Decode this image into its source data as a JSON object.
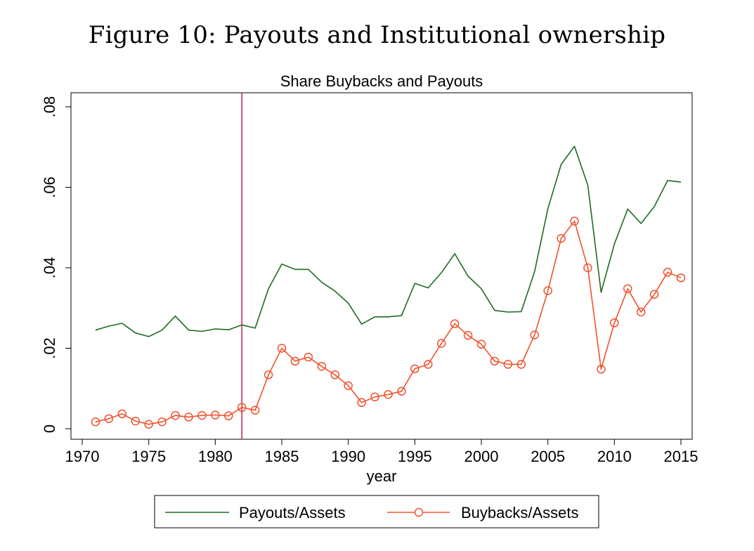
{
  "page": {
    "figure_caption": "Figure 10: Payouts and Institutional ownership"
  },
  "chart_data": {
    "type": "line",
    "title": "Share Buybacks and Payouts",
    "xlabel": "year",
    "ylabel": "",
    "xlim": [
      1970,
      2015
    ],
    "ylim": [
      0,
      0.08
    ],
    "x_ticks": [
      1970,
      1975,
      1980,
      1985,
      1990,
      1995,
      2000,
      2005,
      2010,
      2015
    ],
    "x_tick_labels": [
      "1970",
      "1975",
      "1980",
      "1985",
      "1990",
      "1995",
      "2000",
      "2005",
      "2010",
      "2015"
    ],
    "y_ticks": [
      0,
      0.02,
      0.04,
      0.06,
      0.08
    ],
    "y_tick_labels": [
      "0",
      ".02",
      ".04",
      ".06",
      ".08"
    ],
    "grid": false,
    "legend_position": "bottom",
    "reference_line": {
      "x": 1982,
      "color": "#c0264a"
    },
    "x": [
      1971,
      1972,
      1973,
      1974,
      1975,
      1976,
      1977,
      1978,
      1979,
      1980,
      1981,
      1982,
      1983,
      1984,
      1985,
      1986,
      1987,
      1988,
      1989,
      1990,
      1991,
      1992,
      1993,
      1994,
      1995,
      1996,
      1997,
      1998,
      1999,
      2000,
      2001,
      2002,
      2003,
      2004,
      2005,
      2006,
      2007,
      2008,
      2009,
      2010,
      2011,
      2012,
      2013,
      2014,
      2015
    ],
    "series": [
      {
        "name": "Payouts/Assets",
        "color": "#1e6b22",
        "marker": "none",
        "values": [
          0.0245,
          0.0255,
          0.0262,
          0.0238,
          0.0229,
          0.0245,
          0.028,
          0.0245,
          0.0242,
          0.0248,
          0.0246,
          0.0258,
          0.025,
          0.0348,
          0.0409,
          0.0396,
          0.0396,
          0.0364,
          0.0342,
          0.0312,
          0.026,
          0.0278,
          0.0278,
          0.0281,
          0.0361,
          0.035,
          0.0388,
          0.0435,
          0.0379,
          0.0348,
          0.0294,
          0.029,
          0.0291,
          0.039,
          0.0547,
          0.0657,
          0.0702,
          0.0605,
          0.0339,
          0.0459,
          0.0546,
          0.051,
          0.0552,
          0.0617,
          0.0613
        ]
      },
      {
        "name": "Buybacks/Assets",
        "color": "#f0522e",
        "marker": "hollow-circle",
        "values": [
          0.0017,
          0.0025,
          0.0037,
          0.0019,
          0.0011,
          0.0017,
          0.0033,
          0.0029,
          0.0033,
          0.0034,
          0.0032,
          0.0053,
          0.0046,
          0.0134,
          0.02,
          0.0168,
          0.0178,
          0.0155,
          0.0134,
          0.0107,
          0.0065,
          0.0079,
          0.0085,
          0.0093,
          0.0149,
          0.016,
          0.0212,
          0.0261,
          0.0232,
          0.021,
          0.0168,
          0.016,
          0.016,
          0.0233,
          0.0343,
          0.0473,
          0.0516,
          0.04,
          0.0148,
          0.0263,
          0.0348,
          0.029,
          0.0334,
          0.0389,
          0.0375
        ]
      }
    ]
  }
}
